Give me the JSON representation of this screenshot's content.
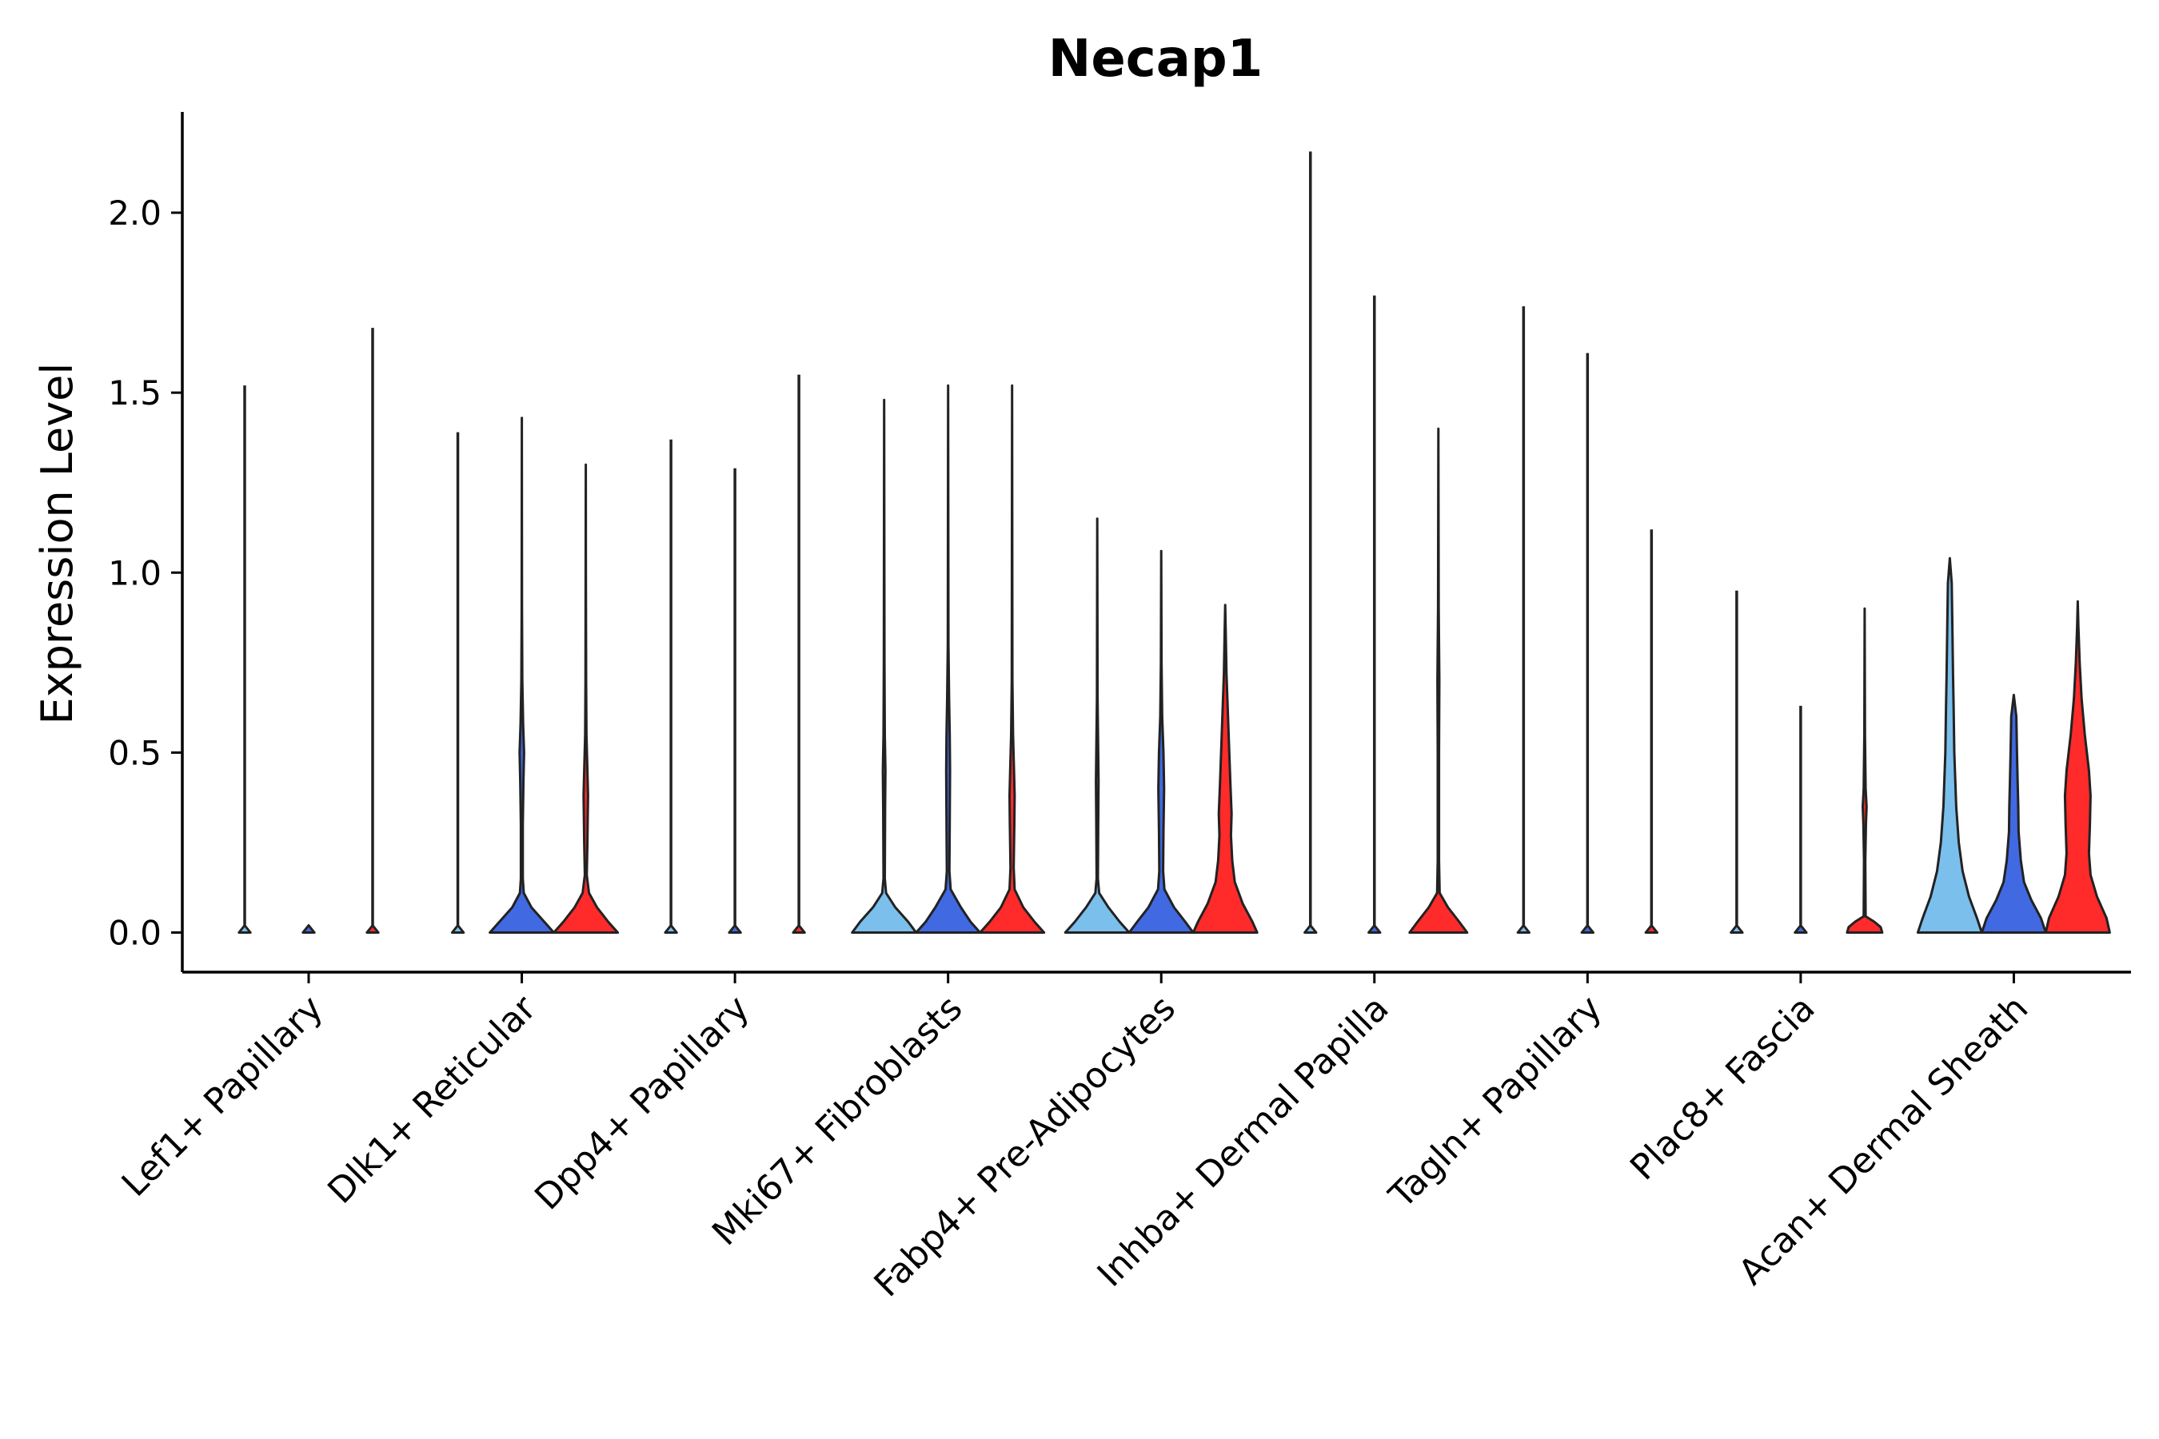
{
  "chart_data": {
    "type": "violin",
    "title": "Necap1",
    "xlabel": "",
    "ylabel": "Expression Level",
    "ylim": [
      -0.11,
      2.28
    ],
    "yticks": [
      0.0,
      0.5,
      1.0,
      1.5,
      2.0
    ],
    "ytick_labels": [
      "0.0",
      "0.5",
      "1.0",
      "1.5",
      "2.0"
    ],
    "series_colors": [
      "#7bbfec",
      "#4169e1",
      "#ff2a2a"
    ],
    "categories": [
      "Lef1+ Papillary",
      "Dlk1+ Reticular",
      "Dpp4+ Papillary",
      "Mki67+ Fibroblasts",
      "Fabp4+ Pre-Adipocytes",
      "Inhba+ Dermal Papilla",
      "Tagln+ Papillary",
      "Plac8+ Fascia",
      "Acan+ Dermal Sheath"
    ],
    "violins": [
      [
        {
          "max": 1.52,
          "profile": [
            [
              0,
              0.18
            ],
            [
              0.02,
              0.0
            ]
          ]
        },
        {
          "max": 0.0,
          "profile": [
            [
              0,
              0.18
            ],
            [
              0.02,
              0.0
            ]
          ]
        },
        {
          "max": 1.68,
          "profile": [
            [
              0,
              0.18
            ],
            [
              0.02,
              0.0
            ]
          ]
        }
      ],
      [
        {
          "max": 1.39,
          "profile": [
            [
              0,
              0.18
            ],
            [
              0.02,
              0.0
            ]
          ]
        },
        {
          "max": 1.43,
          "profile": [
            [
              0,
              1.0
            ],
            [
              0.03,
              0.7
            ],
            [
              0.07,
              0.3
            ],
            [
              0.11,
              0.06
            ],
            [
              0.15,
              0.03
            ],
            [
              0.3,
              0.03
            ],
            [
              0.42,
              0.05
            ],
            [
              0.5,
              0.07
            ],
            [
              0.58,
              0.04
            ],
            [
              0.7,
              0.015
            ],
            [
              0.9,
              0.005
            ],
            [
              1.43,
              0.0
            ]
          ]
        },
        {
          "max": 1.3,
          "profile": [
            [
              0,
              1.0
            ],
            [
              0.03,
              0.7
            ],
            [
              0.07,
              0.35
            ],
            [
              0.11,
              0.1
            ],
            [
              0.16,
              0.03
            ],
            [
              0.25,
              0.05
            ],
            [
              0.32,
              0.06
            ],
            [
              0.38,
              0.07
            ],
            [
              0.45,
              0.05
            ],
            [
              0.55,
              0.02
            ],
            [
              0.7,
              0.01
            ],
            [
              1.0,
              0.003
            ],
            [
              1.3,
              0.0
            ]
          ]
        }
      ],
      [
        {
          "max": 1.37,
          "profile": [
            [
              0,
              0.18
            ],
            [
              0.02,
              0.0
            ]
          ]
        },
        {
          "max": 1.29,
          "profile": [
            [
              0,
              0.18
            ],
            [
              0.02,
              0.0
            ]
          ]
        },
        {
          "max": 1.55,
          "profile": [
            [
              0,
              0.18
            ],
            [
              0.02,
              0.0
            ]
          ]
        }
      ],
      [
        {
          "max": 1.48,
          "profile": [
            [
              0,
              1.0
            ],
            [
              0.03,
              0.75
            ],
            [
              0.07,
              0.35
            ],
            [
              0.11,
              0.06
            ],
            [
              0.15,
              0.02
            ],
            [
              0.35,
              0.03
            ],
            [
              0.45,
              0.04
            ],
            [
              0.55,
              0.02
            ],
            [
              0.75,
              0.01
            ],
            [
              1.48,
              0.0
            ]
          ]
        },
        {
          "max": 1.52,
          "profile": [
            [
              0,
              1.0
            ],
            [
              0.03,
              0.7
            ],
            [
              0.07,
              0.4
            ],
            [
              0.12,
              0.08
            ],
            [
              0.17,
              0.04
            ],
            [
              0.3,
              0.05
            ],
            [
              0.45,
              0.06
            ],
            [
              0.55,
              0.05
            ],
            [
              0.65,
              0.03
            ],
            [
              0.8,
              0.01
            ],
            [
              1.52,
              0.0
            ]
          ]
        },
        {
          "max": 1.52,
          "profile": [
            [
              0,
              1.0
            ],
            [
              0.03,
              0.7
            ],
            [
              0.07,
              0.35
            ],
            [
              0.12,
              0.08
            ],
            [
              0.18,
              0.05
            ],
            [
              0.3,
              0.07
            ],
            [
              0.38,
              0.08
            ],
            [
              0.45,
              0.06
            ],
            [
              0.55,
              0.03
            ],
            [
              0.7,
              0.01
            ],
            [
              1.52,
              0.0
            ]
          ]
        }
      ],
      [
        {
          "max": 1.15,
          "profile": [
            [
              0,
              1.0
            ],
            [
              0.03,
              0.7
            ],
            [
              0.07,
              0.35
            ],
            [
              0.11,
              0.06
            ],
            [
              0.15,
              0.02
            ],
            [
              0.3,
              0.03
            ],
            [
              0.42,
              0.04
            ],
            [
              0.5,
              0.03
            ],
            [
              0.65,
              0.01
            ],
            [
              1.15,
              0.0
            ]
          ]
        },
        {
          "max": 1.06,
          "profile": [
            [
              0,
              1.0
            ],
            [
              0.03,
              0.75
            ],
            [
              0.07,
              0.4
            ],
            [
              0.12,
              0.1
            ],
            [
              0.17,
              0.06
            ],
            [
              0.28,
              0.07
            ],
            [
              0.4,
              0.09
            ],
            [
              0.5,
              0.07
            ],
            [
              0.6,
              0.03
            ],
            [
              0.75,
              0.01
            ],
            [
              1.06,
              0.0
            ]
          ]
        },
        {
          "max": 0.91,
          "profile": [
            [
              0,
              1.0
            ],
            [
              0.03,
              0.85
            ],
            [
              0.08,
              0.55
            ],
            [
              0.14,
              0.3
            ],
            [
              0.2,
              0.22
            ],
            [
              0.27,
              0.18
            ],
            [
              0.33,
              0.2
            ],
            [
              0.42,
              0.16
            ],
            [
              0.52,
              0.12
            ],
            [
              0.62,
              0.08
            ],
            [
              0.72,
              0.04
            ],
            [
              0.82,
              0.02
            ],
            [
              0.91,
              0.0
            ]
          ]
        }
      ],
      [
        {
          "max": 2.17,
          "profile": [
            [
              0,
              0.18
            ],
            [
              0.02,
              0.0
            ]
          ]
        },
        {
          "max": 1.77,
          "profile": [
            [
              0,
              0.18
            ],
            [
              0.02,
              0.0
            ]
          ]
        },
        {
          "max": 1.4,
          "profile": [
            [
              0,
              0.9
            ],
            [
              0.03,
              0.65
            ],
            [
              0.07,
              0.3
            ],
            [
              0.11,
              0.04
            ],
            [
              0.2,
              0.02
            ],
            [
              0.5,
              0.02
            ],
            [
              0.7,
              0.03
            ],
            [
              0.9,
              0.01
            ],
            [
              1.4,
              0.0
            ]
          ]
        }
      ],
      [
        {
          "max": 1.74,
          "profile": [
            [
              0,
              0.18
            ],
            [
              0.02,
              0.0
            ]
          ]
        },
        {
          "max": 1.61,
          "profile": [
            [
              0,
              0.18
            ],
            [
              0.02,
              0.0
            ]
          ]
        },
        {
          "max": 1.12,
          "profile": [
            [
              0,
              0.18
            ],
            [
              0.02,
              0.0
            ]
          ]
        }
      ],
      [
        {
          "max": 0.95,
          "profile": [
            [
              0,
              0.18
            ],
            [
              0.02,
              0.0
            ]
          ]
        },
        {
          "max": 0.63,
          "profile": [
            [
              0,
              0.18
            ],
            [
              0.02,
              0.0
            ]
          ]
        },
        {
          "max": 0.9,
          "profile": [
            [
              0,
              0.55
            ],
            [
              0.015,
              0.5
            ],
            [
              0.03,
              0.3
            ],
            [
              0.045,
              0.03
            ],
            [
              0.2,
              0.02
            ],
            [
              0.3,
              0.04
            ],
            [
              0.35,
              0.06
            ],
            [
              0.4,
              0.03
            ],
            [
              0.55,
              0.01
            ],
            [
              0.9,
              0.0
            ]
          ]
        }
      ],
      [
        {
          "max": 1.04,
          "profile": [
            [
              0,
              1.0
            ],
            [
              0.04,
              0.85
            ],
            [
              0.1,
              0.6
            ],
            [
              0.17,
              0.4
            ],
            [
              0.25,
              0.28
            ],
            [
              0.35,
              0.2
            ],
            [
              0.5,
              0.14
            ],
            [
              0.62,
              0.12
            ],
            [
              0.72,
              0.1
            ],
            [
              0.85,
              0.08
            ],
            [
              0.97,
              0.06
            ],
            [
              1.04,
              0.0
            ]
          ]
        },
        {
          "max": 0.66,
          "profile": [
            [
              0,
              1.0
            ],
            [
              0.04,
              0.85
            ],
            [
              0.09,
              0.55
            ],
            [
              0.14,
              0.32
            ],
            [
              0.2,
              0.22
            ],
            [
              0.28,
              0.15
            ],
            [
              0.35,
              0.14
            ],
            [
              0.42,
              0.12
            ],
            [
              0.5,
              0.1
            ],
            [
              0.6,
              0.08
            ],
            [
              0.66,
              0.0
            ]
          ]
        },
        {
          "max": 0.92,
          "profile": [
            [
              0,
              1.0
            ],
            [
              0.04,
              0.9
            ],
            [
              0.1,
              0.6
            ],
            [
              0.16,
              0.4
            ],
            [
              0.22,
              0.35
            ],
            [
              0.3,
              0.38
            ],
            [
              0.38,
              0.4
            ],
            [
              0.45,
              0.35
            ],
            [
              0.55,
              0.22
            ],
            [
              0.65,
              0.12
            ],
            [
              0.75,
              0.06
            ],
            [
              0.85,
              0.02
            ],
            [
              0.92,
              0.0
            ]
          ]
        }
      ]
    ]
  }
}
